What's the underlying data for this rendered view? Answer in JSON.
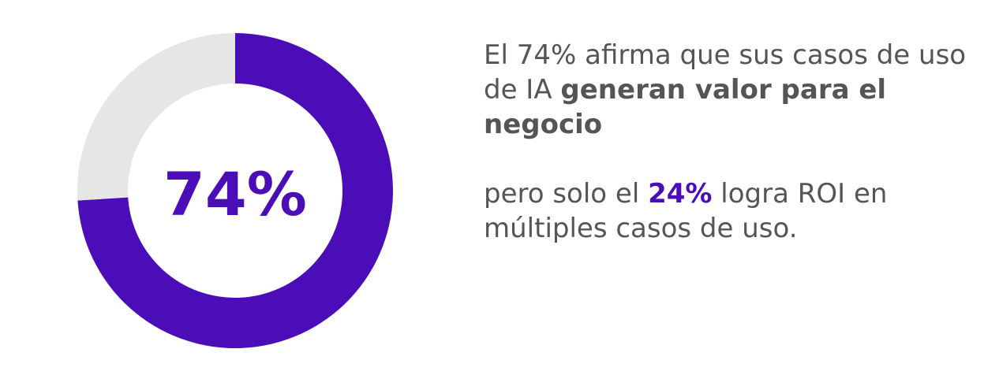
{
  "colors": {
    "accent": "#4B0DB8",
    "track": "#E6E6E6",
    "text": "#555555"
  },
  "chart_data": {
    "type": "pie",
    "categories": [
      "74%",
      ""
    ],
    "values": [
      74,
      26
    ],
    "center_label": "74%",
    "title": "",
    "xlabel": "",
    "ylabel": ""
  },
  "statement": {
    "line1_prefix": "El 74% afirma que sus casos de uso de IA ",
    "line1_bold": "generan valor para el negocio",
    "line2_prefix": "pero solo el ",
    "line2_highlight": "24%",
    "line2_suffix": " logra ROI en múltiples casos de uso."
  }
}
